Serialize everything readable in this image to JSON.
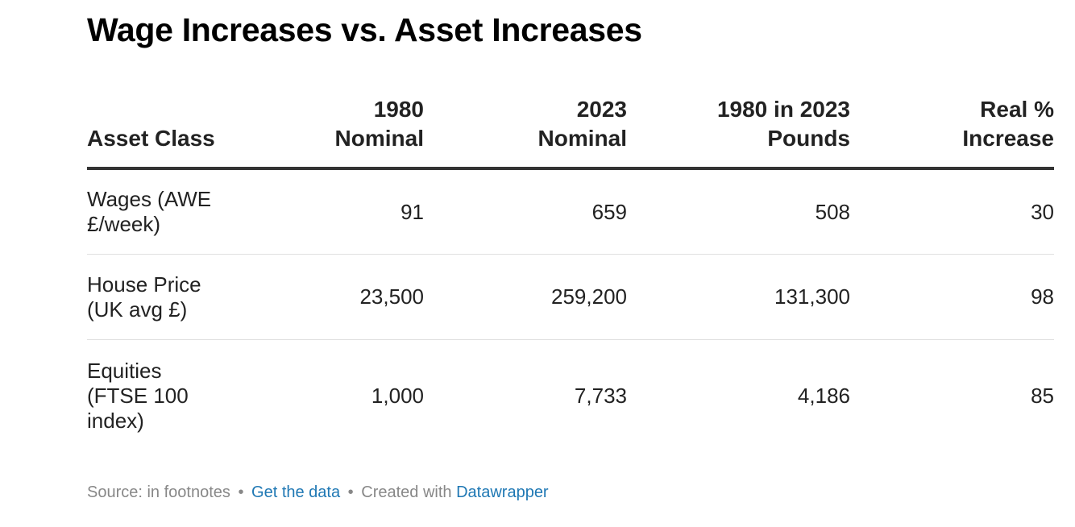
{
  "chart_data": {
    "type": "table",
    "title": "Wage Increases vs. Asset Increases",
    "columns": {
      "c0": "Asset Class",
      "c1_line1": "1980",
      "c1_line2": "Nominal",
      "c2_line1": "2023",
      "c2_line2": "Nominal",
      "c3_line1": "1980 in 2023",
      "c3_line2": "Pounds",
      "c4_line1": "Real %",
      "c4_line2": "Increase"
    },
    "rows": [
      {
        "label_line1": "Wages (AWE",
        "label_line2": "£/week)",
        "nominal_1980": "91",
        "nominal_2023": "659",
        "in_2023_pounds": "508",
        "real_increase": "30"
      },
      {
        "label_line1": "House Price",
        "label_line2": "(UK avg £)",
        "nominal_1980": "23,500",
        "nominal_2023": "259,200",
        "in_2023_pounds": "131,300",
        "real_increase": "98"
      },
      {
        "label_line1": "Equities",
        "label_line2": "(FTSE 100",
        "label_line3": "index)",
        "nominal_1980": "1,000",
        "nominal_2023": "7,733",
        "in_2023_pounds": "4,186",
        "real_increase": "85"
      }
    ]
  },
  "footer": {
    "source": "Source: in footnotes",
    "separator": "•",
    "get_data": "Get the data",
    "created_with": "Created with",
    "tool": "Datawrapper"
  },
  "colors": {
    "link": "#1f78b4",
    "footer_text": "#888888",
    "header_rule": "#333333"
  }
}
